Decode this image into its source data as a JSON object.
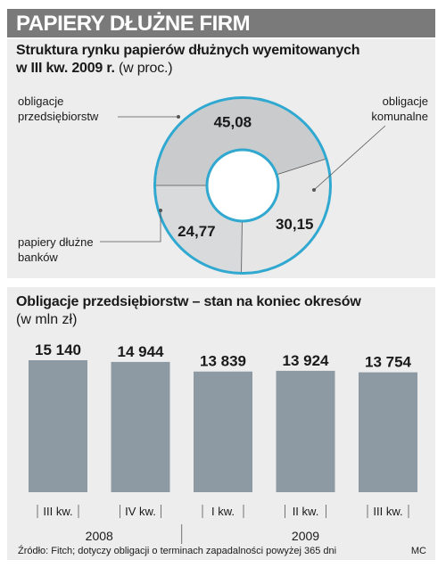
{
  "header": {
    "title": "PAPIERY DŁUŻNE FIRM"
  },
  "pie_section": {
    "title_line1": "Struktura rynku papierów dłużnych wyemitowanych",
    "title_line2": "w III kw. 2009 r.",
    "unit": "(w proc.)"
  },
  "bar_section": {
    "title": "Obligacje przedsiębiorstw – stan na koniec okresów",
    "unit": "(w mln zł)"
  },
  "footer": {
    "source": "Źródło: Fitch; dotyczy obligacji o terminach zapadalności powyżej 365 dni",
    "author": "MC"
  },
  "colors": {
    "header_bg": "#7a7a7a",
    "panel_bg": "#ededed",
    "bar": "#8e9aa3",
    "donut_ring": "#30a8d0",
    "segment_1": "#c9cbcd",
    "segment_2": "#e6e6e6",
    "segment_3": "#d9dadb"
  },
  "chart_data": [
    {
      "type": "pie",
      "variant": "donut",
      "slices": [
        {
          "label": "obligacje przedsiębiorstw",
          "value": 45.08,
          "value_label": "45,08"
        },
        {
          "label": "obligacje komunalne",
          "value": 30.15,
          "value_label": "30,15"
        },
        {
          "label": "papiery dłużne banków",
          "value": 24.77,
          "value_label": "24,77"
        }
      ],
      "unit": "proc."
    },
    {
      "type": "bar",
      "categories": [
        "III kw.",
        "IV kw.",
        "I kw.",
        "II kw.",
        "III kw."
      ],
      "groups": [
        {
          "label": "2008",
          "categories": [
            "III kw.",
            "IV kw."
          ]
        },
        {
          "label": "2009",
          "categories": [
            "I kw.",
            "II kw.",
            "III kw."
          ]
        }
      ],
      "values": [
        15140,
        14944,
        13839,
        13924,
        13754
      ],
      "value_labels": [
        "15 140",
        "14 944",
        "13 839",
        "13 924",
        "13 754"
      ],
      "ylim": [
        0,
        15140
      ],
      "unit": "mln zł"
    }
  ]
}
